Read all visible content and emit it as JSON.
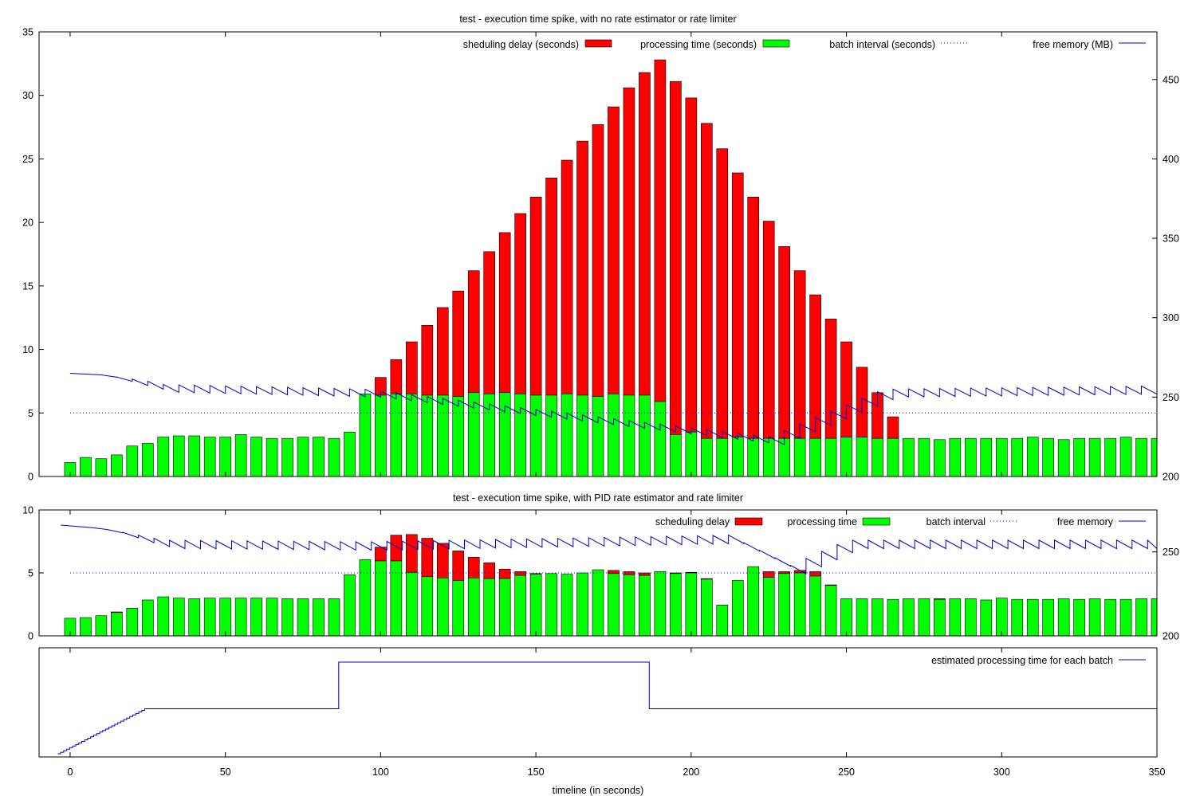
{
  "xlabel": "timeline (in seconds)",
  "x_ticks": [
    0,
    50,
    100,
    150,
    200,
    250,
    300,
    350
  ],
  "colors": {
    "scheduling_delay": "#ff0000",
    "processing_time": "#00ff00",
    "batch_interval": "#0000cc",
    "free_memory": "#0000cc",
    "estimated_processing": "#0000cc"
  },
  "chart_data": [
    {
      "type": "bar",
      "title": "test - execution time spike, with no rate estimator or rate limiter",
      "xlim": [
        -10,
        350
      ],
      "ylim": [
        0,
        35
      ],
      "y_ticks": [
        0,
        5,
        10,
        15,
        20,
        25,
        30,
        35
      ],
      "y2lim": [
        200,
        480
      ],
      "y2_ticks": [
        200,
        250,
        300,
        350,
        400,
        450
      ],
      "legend_position": "top",
      "legend": {
        "scheduling_delay": "sheduling delay (seconds)",
        "processing_time": "processing time (seconds)",
        "batch_interval": "batch interval (seconds)",
        "free_memory": "free memory (MB)"
      },
      "batch_interval": 5,
      "x": [
        0,
        5,
        10,
        15,
        20,
        25,
        30,
        35,
        40,
        45,
        50,
        55,
        60,
        65,
        70,
        75,
        80,
        85,
        90,
        95,
        100,
        105,
        110,
        115,
        120,
        125,
        130,
        135,
        140,
        145,
        150,
        155,
        160,
        165,
        170,
        175,
        180,
        185,
        190,
        195,
        200,
        205,
        210,
        215,
        220,
        225,
        230,
        235,
        240,
        245,
        250,
        255,
        260,
        265,
        270,
        275,
        280,
        285,
        290,
        295,
        300,
        305,
        310,
        315,
        320,
        325,
        330,
        335,
        340,
        345,
        350
      ],
      "processing": [
        1.1,
        1.5,
        1.4,
        1.7,
        2.4,
        2.6,
        3.1,
        3.2,
        3.2,
        3.1,
        3.1,
        3.3,
        3.1,
        3.0,
        3.0,
        3.1,
        3.1,
        3.0,
        3.5,
        6.5,
        6.4,
        6.5,
        6.5,
        6.4,
        6.4,
        6.3,
        6.6,
        6.5,
        6.6,
        6.5,
        6.4,
        6.4,
        6.5,
        6.4,
        6.3,
        6.5,
        6.4,
        6.4,
        5.9,
        3.3,
        3.5,
        3.0,
        3.0,
        3.1,
        3.0,
        3.0,
        3.0,
        3.0,
        3.0,
        3.0,
        3.1,
        3.1,
        3.0,
        3.0,
        3.0,
        3.0,
        2.9,
        3.0,
        3.0,
        3.0,
        3.0,
        3.0,
        3.1,
        3.0,
        2.9,
        3.0,
        3.0,
        3.0,
        3.1,
        3.0,
        3.0
      ],
      "total": [
        1.1,
        1.5,
        1.4,
        1.7,
        2.4,
        2.6,
        3.1,
        3.2,
        3.2,
        3.1,
        3.1,
        3.3,
        3.1,
        3.0,
        3.0,
        3.1,
        3.1,
        3.0,
        3.5,
        6.5,
        7.8,
        9.2,
        10.6,
        11.9,
        13.3,
        14.6,
        16.2,
        17.7,
        19.2,
        20.7,
        22.0,
        23.5,
        24.9,
        26.4,
        27.7,
        29.1,
        30.6,
        31.8,
        32.8,
        31.1,
        29.8,
        27.8,
        25.8,
        23.9,
        22.0,
        20.1,
        18.1,
        16.2,
        14.3,
        12.4,
        10.6,
        8.6,
        6.6,
        4.7,
        3.0,
        3.0,
        2.9,
        3.0,
        3.0,
        3.0,
        3.0,
        3.0,
        3.1,
        3.0,
        2.9,
        3.0,
        3.0,
        3.0,
        3.1,
        3.0,
        3.0
      ],
      "free_memory": {
        "start": [
          0,
          265
        ],
        "envelope": [
          [
            0,
            265
          ],
          [
            10,
            264
          ],
          [
            25,
            260
          ],
          [
            30,
            258
          ],
          [
            95,
            255
          ],
          [
            190,
            233
          ],
          [
            225,
            225
          ],
          [
            262,
            255
          ],
          [
            350,
            257
          ]
        ],
        "sawtooth_step_seconds": 5,
        "sawtooth_drop_mb": 5
      }
    },
    {
      "type": "bar",
      "title": "test - execution time spike, with PID rate estimator and rate limiter",
      "xlim": [
        -10,
        350
      ],
      "ylim": [
        0,
        10
      ],
      "y_ticks": [
        0,
        5,
        10
      ],
      "y2lim": [
        200,
        275
      ],
      "y2_ticks": [
        200,
        250
      ],
      "legend_position": "top",
      "legend": {
        "scheduling_delay": "scheduling delay",
        "processing_time": "processing time",
        "batch_interval": "batch interval",
        "free_memory": "free memory"
      },
      "batch_interval": 5,
      "x": [
        0,
        5,
        10,
        15,
        20,
        25,
        30,
        35,
        40,
        45,
        50,
        55,
        60,
        65,
        70,
        75,
        80,
        85,
        90,
        95,
        100,
        105,
        110,
        115,
        120,
        125,
        130,
        135,
        140,
        145,
        150,
        155,
        160,
        165,
        170,
        175,
        180,
        185,
        190,
        195,
        200,
        205,
        210,
        215,
        220,
        225,
        230,
        235,
        240,
        245,
        250,
        255,
        260,
        265,
        270,
        275,
        280,
        285,
        290,
        295,
        300,
        305,
        310,
        315,
        320,
        325,
        330,
        335,
        340,
        345,
        350
      ],
      "processing": [
        1.4,
        1.45,
        1.6,
        1.85,
        2.2,
        2.85,
        3.1,
        3.0,
        2.95,
        3.0,
        3.0,
        3.0,
        3.0,
        3.0,
        2.95,
        2.95,
        2.95,
        2.95,
        4.85,
        6.05,
        5.95,
        5.95,
        5.05,
        4.7,
        4.6,
        4.4,
        4.6,
        4.55,
        4.55,
        4.8,
        4.9,
        4.95,
        4.9,
        5.0,
        5.25,
        4.95,
        4.85,
        4.8,
        5.1,
        4.95,
        5.0,
        4.5,
        2.45,
        4.4,
        5.5,
        4.65,
        4.95,
        5.0,
        4.75,
        4.0,
        2.95,
        2.95,
        2.95,
        2.9,
        2.95,
        2.95,
        2.9,
        2.95,
        2.95,
        2.85,
        3.0,
        2.9,
        2.9,
        2.9,
        2.95,
        2.9,
        2.95,
        2.9,
        2.9,
        2.95,
        2.95
      ],
      "total": [
        1.4,
        1.45,
        1.6,
        1.9,
        2.2,
        2.85,
        3.1,
        3.0,
        2.95,
        3.0,
        3.0,
        3.0,
        3.0,
        3.0,
        2.95,
        2.95,
        2.95,
        2.95,
        4.85,
        6.05,
        7.05,
        8.0,
        8.05,
        7.75,
        7.35,
        6.75,
        6.25,
        5.8,
        5.3,
        5.1,
        4.95,
        4.95,
        4.9,
        5.0,
        5.25,
        5.2,
        5.1,
        5.0,
        5.1,
        5.0,
        5.05,
        4.55,
        2.45,
        4.4,
        5.5,
        5.1,
        5.1,
        5.2,
        5.1,
        4.05,
        2.95,
        2.95,
        2.95,
        2.9,
        2.95,
        2.95,
        2.95,
        2.95,
        2.95,
        2.85,
        3.0,
        2.9,
        2.9,
        2.9,
        2.95,
        2.9,
        2.95,
        2.9,
        2.9,
        2.95,
        2.95
      ],
      "free_memory": {
        "start": [
          -3,
          266
        ],
        "envelope": [
          [
            -3,
            266
          ],
          [
            10,
            264
          ],
          [
            25,
            259
          ],
          [
            30,
            257
          ],
          [
            95,
            256
          ],
          [
            212,
            260
          ],
          [
            232,
            242
          ],
          [
            250,
            257
          ],
          [
            350,
            257
          ]
        ],
        "sawtooth_step_seconds": 5,
        "sawtooth_drop_mb": 5
      }
    },
    {
      "type": "line",
      "title": "",
      "xlim": [
        -10,
        350
      ],
      "legend_position": "top-right",
      "legend": {
        "estimated_processing": "estimated processing time for each batch"
      },
      "steps": [
        {
          "x_start": -4,
          "x_end": 25,
          "level": "ramp_low_to_medium"
        },
        {
          "x_start": 25,
          "x_end": 86.5,
          "level": "medium"
        },
        {
          "x_start": 86.5,
          "x_end": 186.5,
          "level": "high"
        },
        {
          "x_start": 186.5,
          "x_end": 350,
          "level": "medium"
        }
      ],
      "levels": {
        "low": 0.0,
        "medium": 0.5,
        "high": 1.0
      }
    }
  ]
}
